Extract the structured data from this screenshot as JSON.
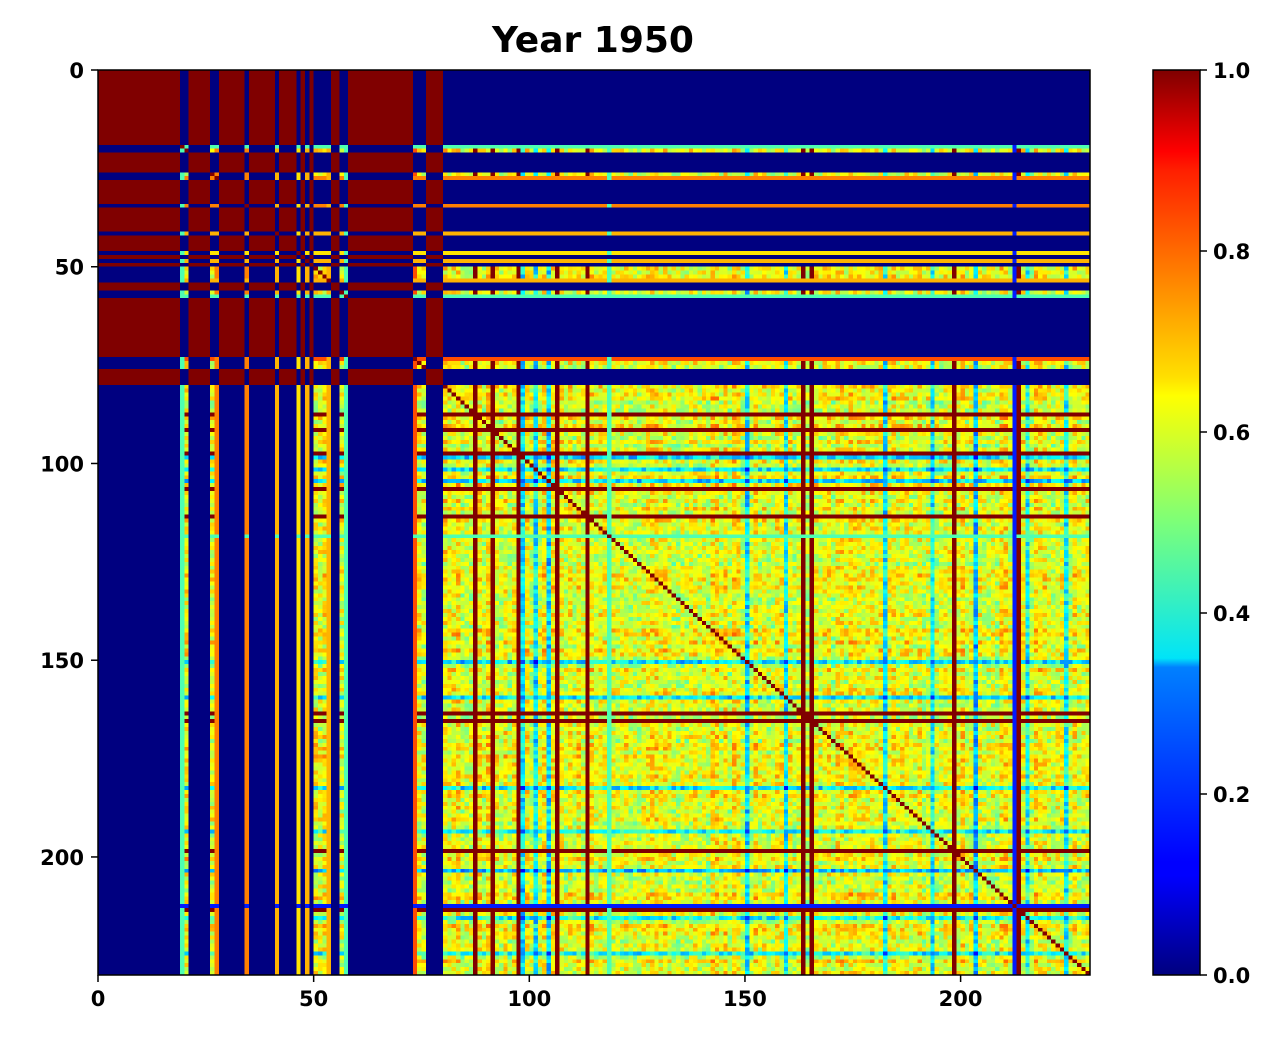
{
  "chart_data": {
    "type": "heatmap",
    "title": "Year 1950",
    "xlabel": "",
    "ylabel": "",
    "matrix_size": 230,
    "x_axis": {
      "range": [
        0,
        230
      ],
      "ticks": [
        0,
        50,
        100,
        150,
        200
      ]
    },
    "y_axis": {
      "range": [
        0,
        230
      ],
      "inverted": true,
      "ticks": [
        0,
        50,
        100,
        150,
        200
      ]
    },
    "colormap": "jet",
    "colorbar": {
      "range": [
        0.0,
        1.0
      ],
      "ticks": [
        0.0,
        0.2,
        0.4,
        0.6,
        0.8,
        1.0
      ],
      "tick_labels": [
        "0.0",
        "0.2",
        "0.4",
        "0.6",
        "0.8",
        "1.0"
      ]
    },
    "diagonal_value": 1.0,
    "structure": {
      "high_block": {
        "range": [
          0,
          80
        ],
        "value": 1.0
      },
      "high_block_excluded_indices": [
        19,
        20,
        26,
        27,
        34,
        41,
        46,
        48,
        50,
        51,
        52,
        53,
        56,
        57,
        73,
        74,
        75
      ],
      "rest_block": {
        "range": [
          80,
          230
        ],
        "typical_value_range": [
          0.45,
          0.7
        ]
      },
      "cross_block_value": 0.0,
      "outlier_rows": [
        {
          "index": 19,
          "value": 0.45
        },
        {
          "index": 27,
          "value": 0.75
        },
        {
          "index": 34,
          "value": 0.75
        },
        {
          "index": 41,
          "value": 0.7
        },
        {
          "index": 46,
          "value": 0.65
        },
        {
          "index": 48,
          "value": 0.7
        },
        {
          "index": 53,
          "value": 0.7
        },
        {
          "index": 57,
          "value": 0.45
        },
        {
          "index": 73,
          "value": 0.8
        },
        {
          "index": 87,
          "value": 1.0
        },
        {
          "index": 91,
          "value": 1.0
        },
        {
          "index": 97,
          "value": 1.0
        },
        {
          "index": 106,
          "value": 1.0
        },
        {
          "index": 113,
          "value": 1.0
        },
        {
          "index": 118,
          "value": 0.45
        },
        {
          "index": 163,
          "value": 1.0
        },
        {
          "index": 165,
          "value": 1.0
        },
        {
          "index": 198,
          "value": 1.0
        },
        {
          "index": 212,
          "value": 0.15
        },
        {
          "index": 213,
          "value": 1.0
        }
      ],
      "low_rows": [
        98,
        101,
        104,
        150,
        159,
        182,
        193,
        203,
        215,
        224
      ]
    }
  },
  "colors": {
    "background": "#ffffff",
    "axes": "#000000",
    "jet_low": "#00007f",
    "jet_high": "#7f0000"
  }
}
